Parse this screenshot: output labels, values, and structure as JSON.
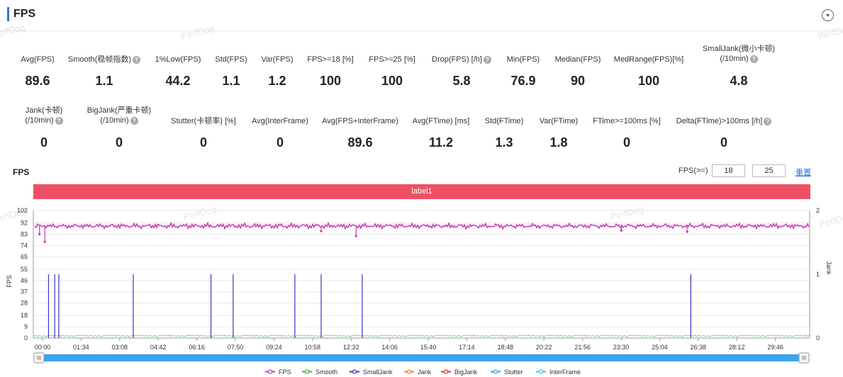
{
  "header": {
    "title": "FPS",
    "accent_color": "#3b6fd8",
    "collapse_icon": "chevron-down-icon",
    "collapse_glyph": "▾"
  },
  "watermark": "PerfDog",
  "metrics_row1": [
    {
      "id": "avg-fps",
      "label": "Avg(FPS)",
      "value": "89.6",
      "help": false
    },
    {
      "id": "smooth",
      "label": "Smooth(稳帧指数)",
      "value": "1.1",
      "help": true
    },
    {
      "id": "low-fps",
      "label": "1%Low(FPS)",
      "value": "44.2",
      "help": false
    },
    {
      "id": "std-fps",
      "label": "Std(FPS)",
      "value": "1.1",
      "help": false
    },
    {
      "id": "var-fps",
      "label": "Var(FPS)",
      "value": "1.2",
      "help": false
    },
    {
      "id": "fps-ge-18",
      "label": "FPS>=18 [%]",
      "value": "100",
      "help": false
    },
    {
      "id": "fps-ge-25",
      "label": "FPS>=25 [%]",
      "value": "100",
      "help": false
    },
    {
      "id": "drop-fps",
      "label": "Drop(FPS) [/h]",
      "value": "5.8",
      "help": true
    },
    {
      "id": "min-fps",
      "label": "Min(FPS)",
      "value": "76.9",
      "help": false
    },
    {
      "id": "median-fps",
      "label": "Median(FPS)",
      "value": "90",
      "help": false
    },
    {
      "id": "medrange-fps",
      "label": "MedRange(FPS)[%]",
      "value": "100",
      "help": false
    },
    {
      "id": "smalljank",
      "label": "SmallJank(微小卡顿)",
      "label2": "(/10min)",
      "value": "4.8",
      "help": true
    }
  ],
  "metrics_row2": [
    {
      "id": "jank",
      "label": "Jank(卡顿)",
      "label2": "(/10min)",
      "value": "0",
      "help": true
    },
    {
      "id": "bigjank",
      "label": "BigJank(严重卡顿)",
      "label2": "(/10min)",
      "value": "0",
      "help": true
    },
    {
      "id": "stutter",
      "label": "Stutter(卡顿率) [%]",
      "value": "0",
      "help": false
    },
    {
      "id": "avg-interframe",
      "label": "Avg(InterFrame)",
      "value": "0",
      "help": false
    },
    {
      "id": "avg-fps-interframe",
      "label": "Avg(FPS+InterFrame)",
      "value": "89.6",
      "help": false
    },
    {
      "id": "avg-ftime",
      "label": "Avg(FTime) [ms]",
      "value": "11.2",
      "help": false
    },
    {
      "id": "std-ftime",
      "label": "Std(FTime)",
      "value": "1.3",
      "help": false
    },
    {
      "id": "var-ftime",
      "label": "Var(FTime)",
      "value": "1.8",
      "help": false
    },
    {
      "id": "ftime-ge-100",
      "label": "FTime>=100ms [%]",
      "value": "0",
      "help": false
    },
    {
      "id": "delta-ftime",
      "label": "Delta(FTime)>100ms [/h]",
      "value": "0",
      "help": true
    }
  ],
  "help_glyph": "?",
  "chart_section": {
    "title": "FPS",
    "threshold_label": "FPS(>=)",
    "threshold_1": "18",
    "threshold_2": "25",
    "reset_label": "重置",
    "label_bar_text": "label1",
    "label_bar_color": "#ee5165"
  },
  "chart_data": {
    "type": "line",
    "y_left_label": "FPS",
    "y_right_label": "Jank",
    "y_left_ticks": [
      "102",
      "92",
      "83",
      "74",
      "65",
      "55",
      "46",
      "37",
      "28",
      "18",
      "9",
      "0"
    ],
    "y_left_range": [
      0,
      102
    ],
    "y_right_ticks": [
      "2",
      "1",
      "0"
    ],
    "y_right_range": [
      0,
      2
    ],
    "x_ticks": [
      "00:00",
      "01:34",
      "03:08",
      "04:42",
      "06:16",
      "07:50",
      "09:24",
      "10:58",
      "12:32",
      "14:06",
      "15:40",
      "17:14",
      "18:48",
      "20:22",
      "21:56",
      "23:30",
      "25:04",
      "26:38",
      "28:12",
      "29:46"
    ],
    "x_range_seconds": [
      0,
      1888
    ],
    "grid": true,
    "fps_baseline": 89.6,
    "fps_dips": [
      {
        "t": 28,
        "fps": 76.9
      },
      {
        "t": 15,
        "fps": 83
      },
      {
        "t": 785,
        "fps": 81.5
      },
      {
        "t": 1590,
        "fps": 85
      },
      {
        "t": 1430,
        "fps": 86
      },
      {
        "t": 700,
        "fps": 85.5
      }
    ],
    "smalljank_times_seconds": [
      37,
      52,
      62,
      243,
      432,
      486,
      636,
      700,
      800,
      1599
    ],
    "smalljank_value": 1,
    "series": [
      {
        "name": "FPS",
        "color": "#c837b4"
      },
      {
        "name": "Smooth",
        "color": "#3cb44b"
      },
      {
        "name": "SmallJank",
        "color": "#3535c8"
      },
      {
        "name": "Jank",
        "color": "#f08030"
      },
      {
        "name": "BigJank",
        "color": "#e03030"
      },
      {
        "name": "Stutter",
        "color": "#4a90e2"
      },
      {
        "name": "InterFrame",
        "color": "#36c9d8"
      }
    ],
    "scrollbar_color": "#3aa4ef"
  }
}
